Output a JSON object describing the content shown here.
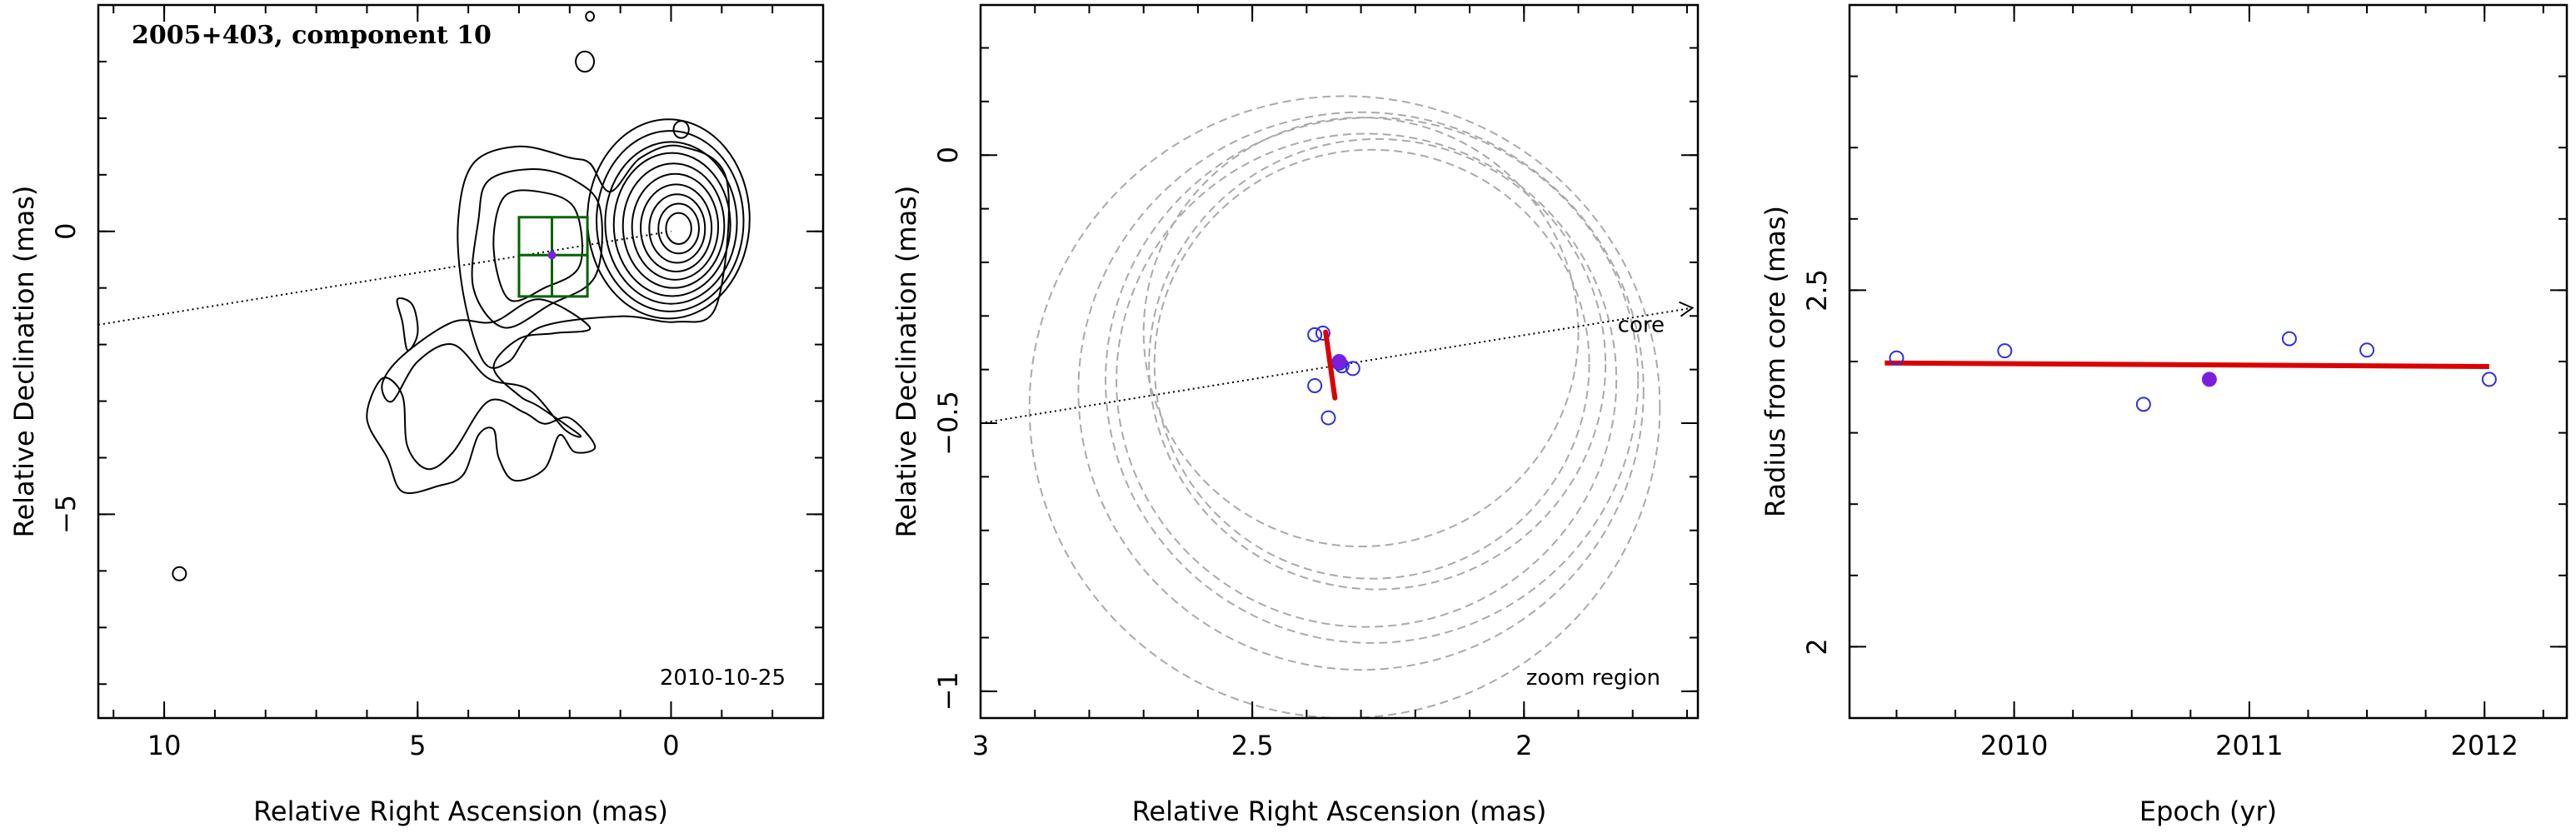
{
  "chart_data": [
    {
      "type": "contour",
      "title": "2005+403, component 10",
      "date_label": "2010-10-25",
      "xlabel": "Relative Right Ascension (mas)",
      "ylabel": "Relative Declination (mas)",
      "xlim": [
        11.3,
        -3
      ],
      "ylim": [
        -8.6,
        4.0
      ],
      "x_ticks": [
        "10",
        "5",
        "0"
      ],
      "y_ticks": [
        "0",
        "−5"
      ],
      "component_position": [
        2.35,
        -0.42
      ],
      "zoom_box": {
        "x": [
          3.0,
          1.65
        ],
        "y": [
          -1.15,
          0.25
        ]
      },
      "direction_line": [
        [
          11.3,
          -1.65
        ],
        [
          0,
          0
        ]
      ],
      "beam": [
        9.7,
        -6.05
      ],
      "colors": {
        "contours": "#000000",
        "zoom_box": "#006400",
        "component": "#7a1fe0"
      }
    },
    {
      "type": "scatter",
      "title": "",
      "xlabel": "Relative Right Ascension (mas)",
      "ylabel": "Relative Declination (mas)",
      "xlim": [
        3.0,
        1.68
      ],
      "ylim": [
        -1.05,
        0.28
      ],
      "x_ticks": [
        "3",
        "2.5",
        "2"
      ],
      "y_ticks": [
        "0",
        "−0.5",
        "−1"
      ],
      "annotations": {
        "core": "core",
        "zoom": "zoom region"
      },
      "points": {
        "x": [
          2.385,
          2.37,
          2.385,
          2.36,
          2.315,
          2.335,
          2.34
        ],
        "y": [
          -0.335,
          -0.332,
          -0.43,
          -0.49,
          -0.398,
          -0.393,
          -0.388
        ]
      },
      "highlight_point": [
        2.34,
        -0.385
      ],
      "velocity_vector": [
        [
          2.365,
          -0.33
        ],
        [
          2.348,
          -0.453
        ]
      ],
      "rings": [
        {
          "cx": 2.33,
          "cy": -0.47,
          "r": 0.58
        },
        {
          "cx": 2.3,
          "cy": -0.44,
          "r": 0.52
        },
        {
          "cx": 2.28,
          "cy": -0.42,
          "r": 0.49
        },
        {
          "cx": 2.29,
          "cy": -0.42,
          "r": 0.46
        },
        {
          "cx": 2.27,
          "cy": -0.39,
          "r": 0.42
        },
        {
          "cx": 2.28,
          "cy": -0.39,
          "r": 0.4
        },
        {
          "cx": 2.3,
          "cy": -0.33,
          "r": 0.4
        }
      ],
      "colors": {
        "points": "#3030e0",
        "highlight": "#7a1fe0",
        "vector": "#dd0000",
        "rings": "#aaaaaa"
      }
    },
    {
      "type": "scatter",
      "title": "",
      "xlabel": "Epoch (yr)",
      "ylabel": "Radius from core (mas)",
      "xlim": [
        2009.3,
        2012.35
      ],
      "ylim": [
        1.9,
        2.9
      ],
      "x_ticks": [
        "2010",
        "2011",
        "2012"
      ],
      "y_ticks": [
        "2",
        "2.5"
      ],
      "points": {
        "x": [
          2009.5,
          2009.96,
          2010.55,
          2011.17,
          2011.5,
          2012.02
        ],
        "y": [
          2.405,
          2.415,
          2.34,
          2.432,
          2.416,
          2.375
        ]
      },
      "highlight_point": [
        2010.83,
        2.375
      ],
      "fit_line": [
        [
          2009.45,
          2.398
        ],
        [
          2012.02,
          2.393
        ]
      ],
      "colors": {
        "points": "#3030e0",
        "highlight": "#7a1fe0",
        "fit": "#dd0000"
      }
    }
  ]
}
